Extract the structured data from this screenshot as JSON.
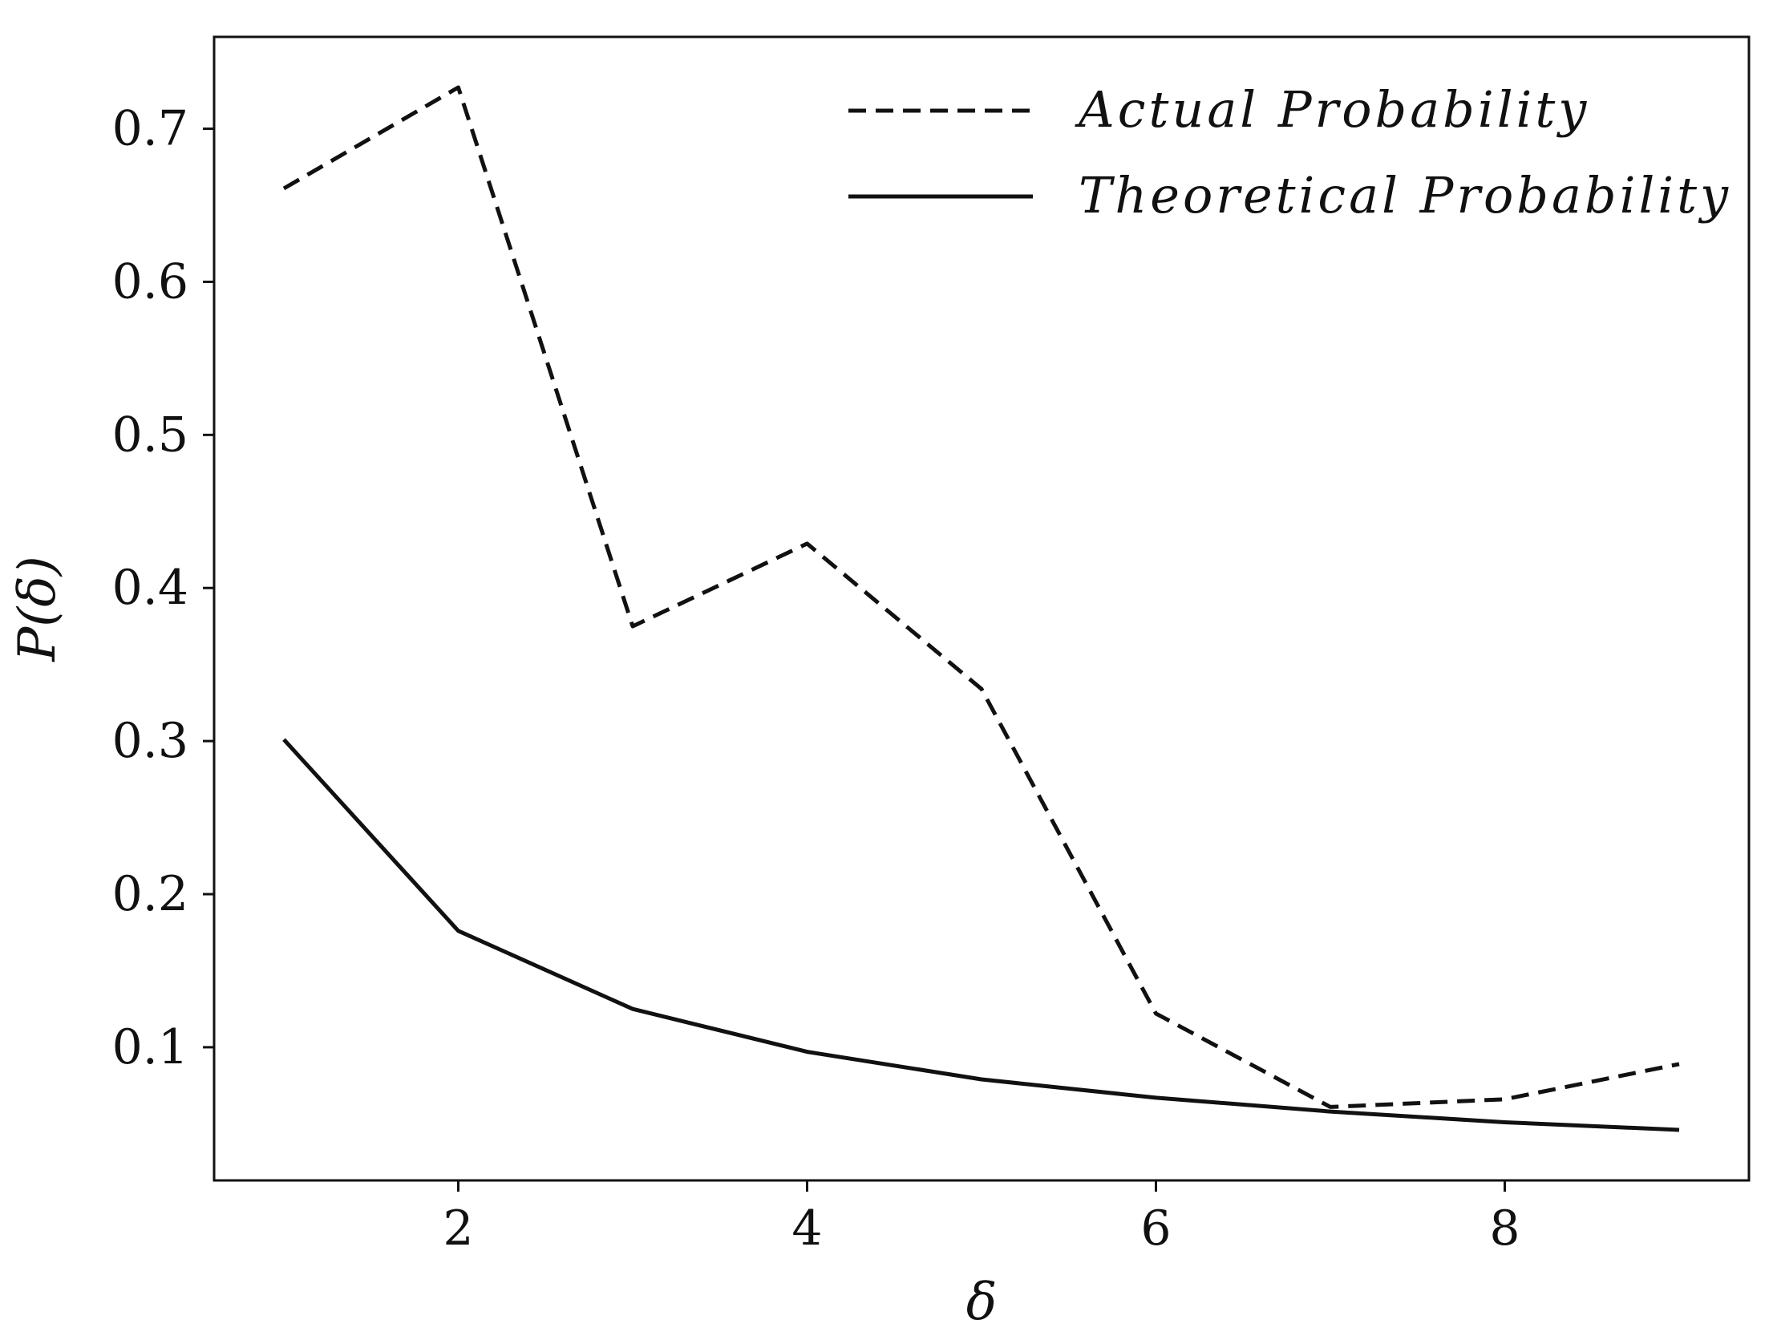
{
  "chart_data": {
    "type": "line",
    "xlabel": "δ",
    "ylabel": "P(δ)",
    "xlim": [
      0.6,
      9.4
    ],
    "ylim": [
      0.013,
      0.76
    ],
    "x_ticks": [
      2,
      4,
      6,
      8
    ],
    "x_tick_labels": [
      "2",
      "4",
      "6",
      "8"
    ],
    "y_ticks": [
      0.1,
      0.2,
      0.3,
      0.4,
      0.5,
      0.6,
      0.7
    ],
    "y_tick_labels": [
      "0.1",
      "0.2",
      "0.3",
      "0.4",
      "0.5",
      "0.6",
      "0.7"
    ],
    "grid": false,
    "legend_position": "top-right",
    "series": [
      {
        "name": "Actual Probability",
        "style": "dashed",
        "color": "#111111",
        "x": [
          1,
          2,
          3,
          4,
          5,
          6,
          7,
          8,
          9
        ],
        "y": [
          0.661,
          0.727,
          0.375,
          0.429,
          0.334,
          0.122,
          0.061,
          0.066,
          0.089
        ]
      },
      {
        "name": "Theoretical Probability",
        "style": "solid",
        "color": "#111111",
        "x": [
          1,
          2,
          3,
          4,
          5,
          6,
          7,
          8,
          9
        ],
        "y": [
          0.301,
          0.176,
          0.125,
          0.097,
          0.079,
          0.067,
          0.058,
          0.051,
          0.046
        ]
      }
    ]
  }
}
